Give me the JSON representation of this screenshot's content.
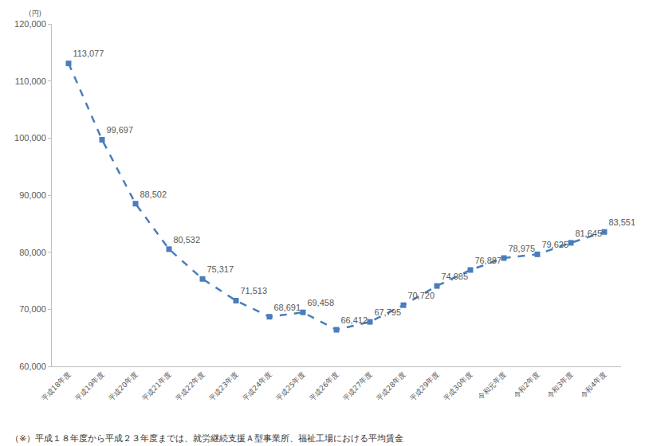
{
  "chart_data": {
    "type": "line",
    "ylabel": "(円)",
    "annotations": [
      "（※）平成１８年度から平成２３年度までは、就労継続支援Ａ型事業所、福祉工場における平均賃金"
    ],
    "categories": [
      "平成18年度",
      "平成19年度",
      "平成20年度",
      "平成21年度",
      "平成22年度",
      "平成23年度",
      "平成24年度",
      "平成25年度",
      "平成26年度",
      "平成27年度",
      "平成28年度",
      "平成29年度",
      "平成30年度",
      "令和元年度",
      "令和2年度",
      "令和3年度",
      "令和4年度"
    ],
    "values": [
      113077,
      99697,
      88502,
      80532,
      75317,
      71513,
      68691,
      69458,
      66412,
      67795,
      70720,
      74085,
      76887,
      78975,
      79625,
      81645,
      83551
    ],
    "value_labels": [
      "113,077",
      "99,697",
      "88,502",
      "80,532",
      "75,317",
      "71,513",
      "68,691",
      "69,458",
      "66,412",
      "67,795",
      "70,720",
      "74,085",
      "76,887",
      "78,975",
      "79,625",
      "81,645",
      "83,551"
    ],
    "data_labels": true,
    "color": "#4a7ebb",
    "line_style": "dash",
    "marker": "square",
    "ylim": [
      60000,
      120000
    ],
    "yticks": [
      {
        "value": 60000,
        "label": "60,000"
      },
      {
        "value": 70000,
        "label": "70,000"
      },
      {
        "value": 80000,
        "label": "80,000"
      },
      {
        "value": 90000,
        "label": "90,000"
      },
      {
        "value": 100000,
        "label": "100,000"
      },
      {
        "value": 110000,
        "label": "110,000"
      },
      {
        "value": 120000,
        "label": "120,000"
      }
    ],
    "grid": false
  }
}
